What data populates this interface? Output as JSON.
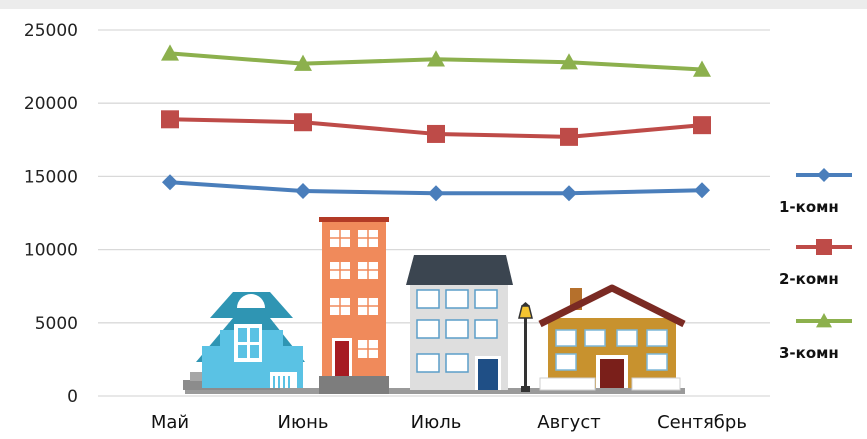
{
  "chart_data": {
    "type": "line",
    "categories": [
      "Май",
      "Июнь",
      "Июль",
      "Август",
      "Сентябрь"
    ],
    "y_ticks": [
      "0",
      "5000",
      "10000",
      "15000",
      "20000",
      "25000"
    ],
    "ylim": [
      0,
      25000
    ],
    "grid": true,
    "legend_position": "right",
    "series": [
      {
        "name": "1-комн",
        "color": "#4a7ebb",
        "marker": "diamond",
        "values": [
          14600,
          14000,
          13850,
          13850,
          14050
        ]
      },
      {
        "name": "2-комн",
        "color": "#be4b48",
        "marker": "square",
        "values": [
          18900,
          18700,
          17900,
          17700,
          18500
        ]
      },
      {
        "name": "3-комн",
        "color": "#8cb04d",
        "marker": "triangle",
        "values": [
          23400,
          22700,
          23000,
          22800,
          22300
        ]
      }
    ]
  },
  "colors": {
    "background": "#ffffff",
    "gridline": "#d9d9d9",
    "top_bar": "#ececec"
  },
  "illustration": {
    "icons": [
      "small-blue-house-icon",
      "tall-orange-building-icon",
      "grey-apartment-building-icon",
      "street-lamp-icon",
      "brown-cottage-icon"
    ]
  }
}
